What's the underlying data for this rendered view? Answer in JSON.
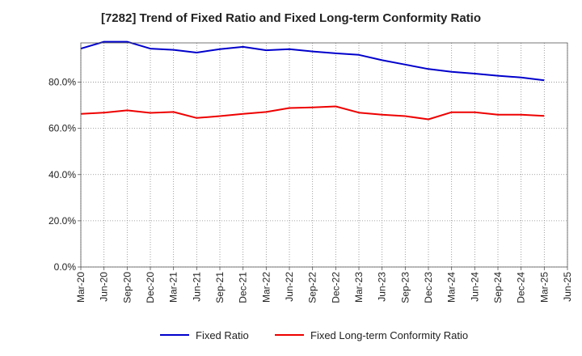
{
  "chart_data": {
    "type": "line",
    "title": "[7282]  Trend of Fixed Ratio and Fixed Long-term Conformity Ratio",
    "xlabel": "",
    "ylabel": "",
    "x": [
      "Mar-20",
      "Jun-20",
      "Sep-20",
      "Dec-20",
      "Mar-21",
      "Jun-21",
      "Sep-21",
      "Dec-21",
      "Mar-22",
      "Jun-22",
      "Sep-22",
      "Dec-22",
      "Mar-23",
      "Jun-23",
      "Sep-23",
      "Dec-23",
      "Mar-24",
      "Jun-24",
      "Sep-24",
      "Dec-24",
      "Mar-25"
    ],
    "x_ticks": [
      "Mar-20",
      "Jun-20",
      "Sep-20",
      "Dec-20",
      "Mar-21",
      "Jun-21",
      "Sep-21",
      "Dec-21",
      "Mar-22",
      "Jun-22",
      "Sep-22",
      "Dec-22",
      "Mar-23",
      "Jun-23",
      "Sep-23",
      "Dec-23",
      "Mar-24",
      "Jun-24",
      "Sep-24",
      "Dec-24",
      "Mar-25",
      "Jun-25"
    ],
    "y_ticks": [
      0,
      20,
      40,
      60,
      80
    ],
    "y_tick_labels": [
      "0.0%",
      "20.0%",
      "40.0%",
      "60.0%",
      "80.0%"
    ],
    "ylim": [
      0,
      97
    ],
    "grid": true,
    "legend_position": "bottom",
    "series": [
      {
        "name": "Fixed Ratio",
        "color": "#0000cc",
        "values": [
          94.5,
          97.5,
          97.5,
          94.5,
          94.0,
          92.8,
          94.3,
          95.3,
          93.8,
          94.3,
          93.3,
          92.5,
          91.8,
          89.5,
          87.6,
          85.7,
          84.5,
          83.7,
          82.8,
          82.0,
          80.8
        ]
      },
      {
        "name": "Fixed Long-term Conformity Ratio",
        "color": "#ee0000",
        "values": [
          66.3,
          66.8,
          67.8,
          66.7,
          67.1,
          64.5,
          65.3,
          66.3,
          67.1,
          68.8,
          69.1,
          69.5,
          66.8,
          65.9,
          65.3,
          63.9,
          67.0,
          67.0,
          65.9,
          65.9,
          65.4
        ]
      }
    ]
  }
}
